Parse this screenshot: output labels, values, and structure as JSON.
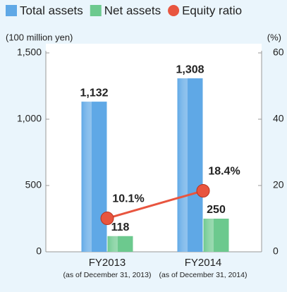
{
  "chart_data": {
    "type": "bar",
    "categories": [
      "FY2013",
      "FY2014"
    ],
    "category_notes": [
      "(as of December 31, 2013)",
      "(as of December 31, 2014)"
    ],
    "y_label": "(100 million yen)",
    "y2_label": "(%)",
    "ylim": [
      0,
      1500
    ],
    "yticks": [
      0,
      500,
      {
        "value": 1000,
        "label": "1,000"
      },
      {
        "value": 1500,
        "label": "1,500"
      }
    ],
    "y2lim": [
      0,
      60
    ],
    "y2ticks": [
      0,
      20,
      40,
      60
    ],
    "series": [
      {
        "name": "Total assets",
        "type": "bar",
        "color": "#5fa8e6",
        "values": [
          1132,
          1308
        ],
        "value_labels": [
          "1,132",
          "1,308"
        ]
      },
      {
        "name": "Net assets",
        "type": "bar",
        "color": "#6cc98e",
        "values": [
          118,
          250
        ],
        "value_labels": [
          "118",
          "250"
        ]
      },
      {
        "name": "Equity ratio",
        "type": "line",
        "axis": "y2",
        "color": "#e8553f",
        "values": [
          10.1,
          18.4
        ],
        "value_labels": [
          "10.1%",
          "18.4%"
        ]
      }
    ]
  }
}
